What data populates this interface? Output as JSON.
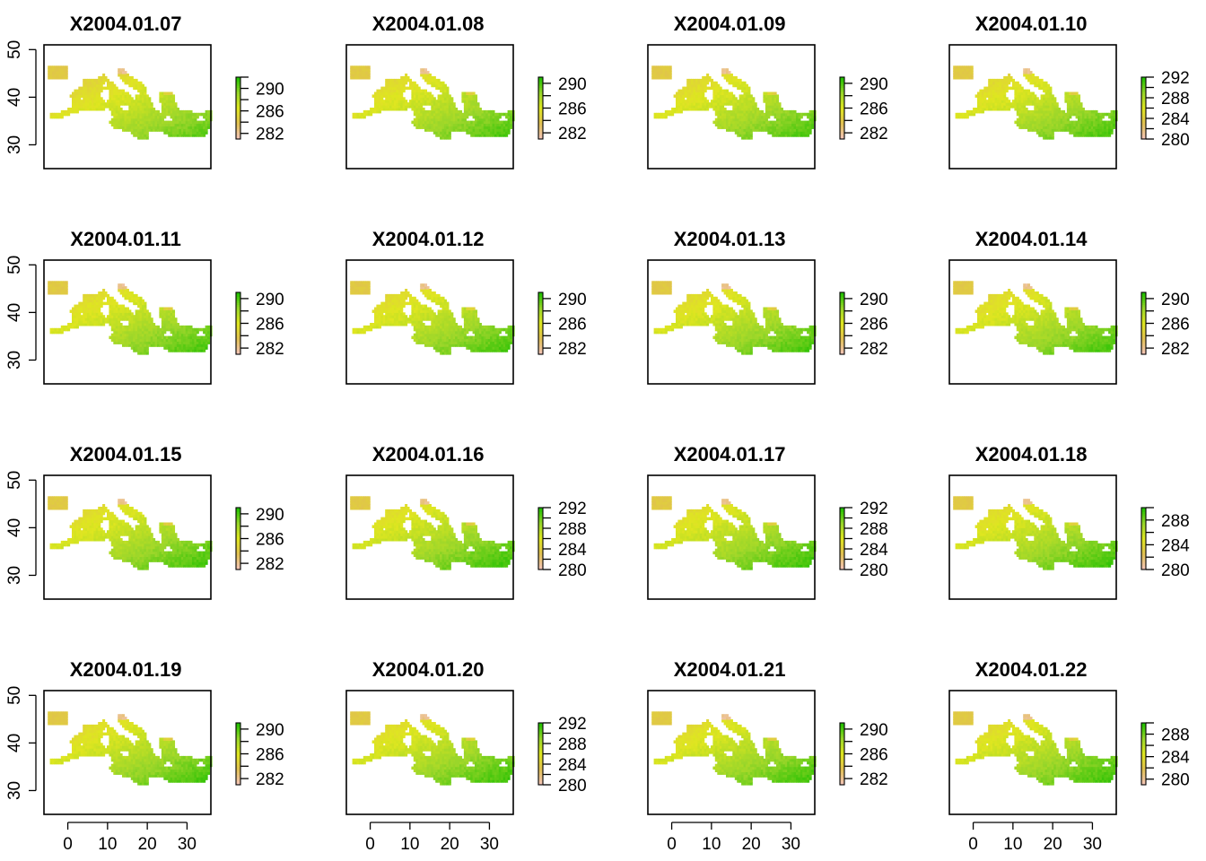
{
  "colors": {
    "low": "#f2c4b6",
    "mid_low": "#e0c050",
    "mid": "#dfe620",
    "mid_high": "#9ad62a",
    "high": "#23c000",
    "frame": "#000000"
  },
  "chart_data": {
    "type": "heatmap",
    "layout": {
      "rows": 4,
      "cols": 4
    },
    "xlim": [
      -6,
      36
    ],
    "ylim": [
      25,
      51
    ],
    "x_ticks": [
      "0",
      "10",
      "20",
      "30"
    ],
    "y_ticks": [
      "30",
      "40",
      "50"
    ],
    "legend_placement": "right",
    "panels": [
      {
        "title": "X2004.01.07",
        "range": [
          281,
          292
        ],
        "legend_ticks": [
          "290",
          "286",
          "282"
        ],
        "warmth": 0.62
      },
      {
        "title": "X2004.01.08",
        "range": [
          281,
          291
        ],
        "legend_ticks": [
          "290",
          "286",
          "282"
        ],
        "warmth": 0.72
      },
      {
        "title": "X2004.01.09",
        "range": [
          281,
          291
        ],
        "legend_ticks": [
          "290",
          "286",
          "282"
        ],
        "warmth": 0.7
      },
      {
        "title": "X2004.01.10",
        "range": [
          280,
          292
        ],
        "legend_ticks": [
          "292",
          "288",
          "284",
          "280"
        ],
        "warmth": 0.72
      },
      {
        "title": "X2004.01.11",
        "range": [
          281,
          291
        ],
        "legend_ticks": [
          "290",
          "286",
          "282"
        ],
        "warmth": 0.74
      },
      {
        "title": "X2004.01.12",
        "range": [
          281,
          291
        ],
        "legend_ticks": [
          "290",
          "286",
          "282"
        ],
        "warmth": 0.74
      },
      {
        "title": "X2004.01.13",
        "range": [
          281,
          291
        ],
        "legend_ticks": [
          "290",
          "286",
          "282"
        ],
        "warmth": 0.74
      },
      {
        "title": "X2004.01.14",
        "range": [
          281,
          291
        ],
        "legend_ticks": [
          "290",
          "286",
          "282"
        ],
        "warmth": 0.74
      },
      {
        "title": "X2004.01.15",
        "range": [
          281,
          291
        ],
        "legend_ticks": [
          "290",
          "286",
          "282"
        ],
        "warmth": 0.76
      },
      {
        "title": "X2004.01.16",
        "range": [
          280,
          292
        ],
        "legend_ticks": [
          "292",
          "288",
          "284",
          "280"
        ],
        "warmth": 0.8
      },
      {
        "title": "X2004.01.17",
        "range": [
          280,
          292
        ],
        "legend_ticks": [
          "292",
          "288",
          "284",
          "280"
        ],
        "warmth": 0.8
      },
      {
        "title": "X2004.01.18",
        "range": [
          280,
          290
        ],
        "legend_ticks": [
          "288",
          "284",
          "280"
        ],
        "warmth": 0.78
      },
      {
        "title": "X2004.01.19",
        "range": [
          281,
          291
        ],
        "legend_ticks": [
          "290",
          "286",
          "282"
        ],
        "warmth": 0.76
      },
      {
        "title": "X2004.01.20",
        "range": [
          280,
          292
        ],
        "legend_ticks": [
          "292",
          "288",
          "284",
          "280"
        ],
        "warmth": 0.78
      },
      {
        "title": "X2004.01.21",
        "range": [
          281,
          291
        ],
        "legend_ticks": [
          "290",
          "286",
          "282"
        ],
        "warmth": 0.76
      },
      {
        "title": "X2004.01.22",
        "range": [
          279,
          290
        ],
        "legend_ticks": [
          "288",
          "284",
          "280"
        ],
        "warmth": 0.78
      }
    ]
  }
}
